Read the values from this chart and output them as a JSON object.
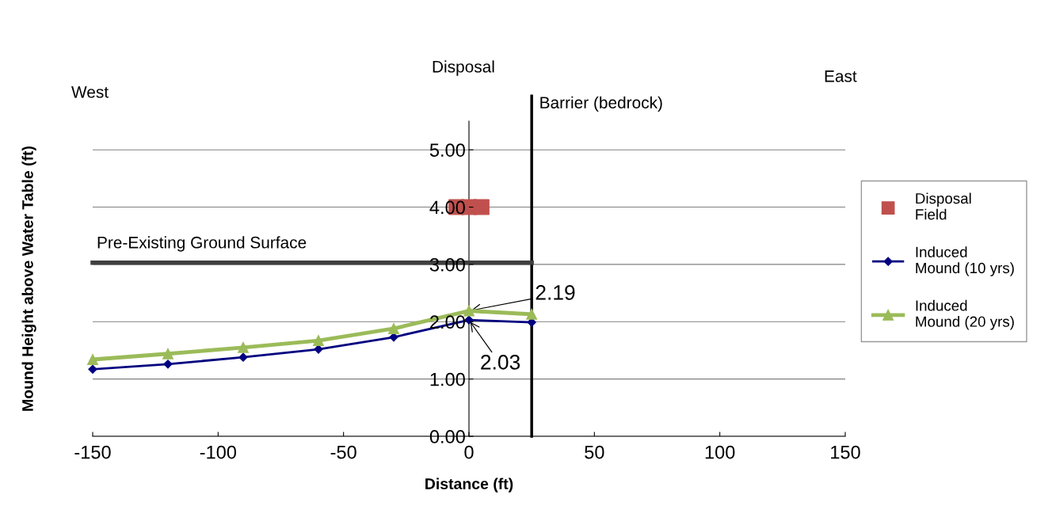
{
  "chart_data": {
    "type": "line",
    "xlabel": "Distance (ft)",
    "ylabel": "Mound Height above Water Table (ft)",
    "xlim": [
      -150,
      150
    ],
    "xticks": [
      -150,
      -100,
      -50,
      0,
      50,
      100,
      150
    ],
    "ylim": [
      0,
      5.5
    ],
    "yticks": [
      {
        "value": 0,
        "label": "0.00"
      },
      {
        "value": 1,
        "label": "1.00"
      },
      {
        "value": 2,
        "label": "2.00"
      },
      {
        "value": 3,
        "label": "3.00"
      },
      {
        "value": 4,
        "label": "4.00"
      },
      {
        "value": 5,
        "label": "5.00"
      }
    ],
    "grid": "y",
    "legend": "right",
    "line_style": "solid",
    "series": [
      {
        "name": "Disposal Field",
        "type": "scatter",
        "marker": "square",
        "color": "#c0504d",
        "x": [
          -5,
          0,
          5
        ],
        "values": [
          4.0,
          4.0,
          4.0
        ]
      },
      {
        "name": "Induced Mound (10 yrs)",
        "marker": "diamond",
        "color": "#000080",
        "x": [
          -150,
          -120,
          -90,
          -60,
          -30,
          0,
          25
        ],
        "values": [
          1.17,
          1.26,
          1.38,
          1.52,
          1.73,
          2.03,
          1.99
        ]
      },
      {
        "name": "Induced Mound (20 yrs)",
        "marker": "triangle",
        "color": "#9bbb59",
        "x": [
          -150,
          -120,
          -90,
          -60,
          -30,
          0,
          25
        ],
        "values": [
          1.34,
          1.44,
          1.55,
          1.67,
          1.88,
          2.19,
          2.13
        ]
      },
      {
        "marker": "none",
        "color": "#404040",
        "x": [
          -150,
          25
        ],
        "values": [
          3.03,
          3.03
        ]
      }
    ],
    "ref_lines": [
      {
        "axis": "x",
        "value": 25,
        "label": "Barrier (bedrock)",
        "color": "#000000"
      }
    ],
    "annotations": [
      "West",
      "Disposal",
      "East",
      "Pre-Existing Ground Surface",
      {
        "text": "2.19",
        "x": 0,
        "y": 2.19
      },
      {
        "text": "2.03",
        "x": 0,
        "y": 2.03
      }
    ]
  }
}
